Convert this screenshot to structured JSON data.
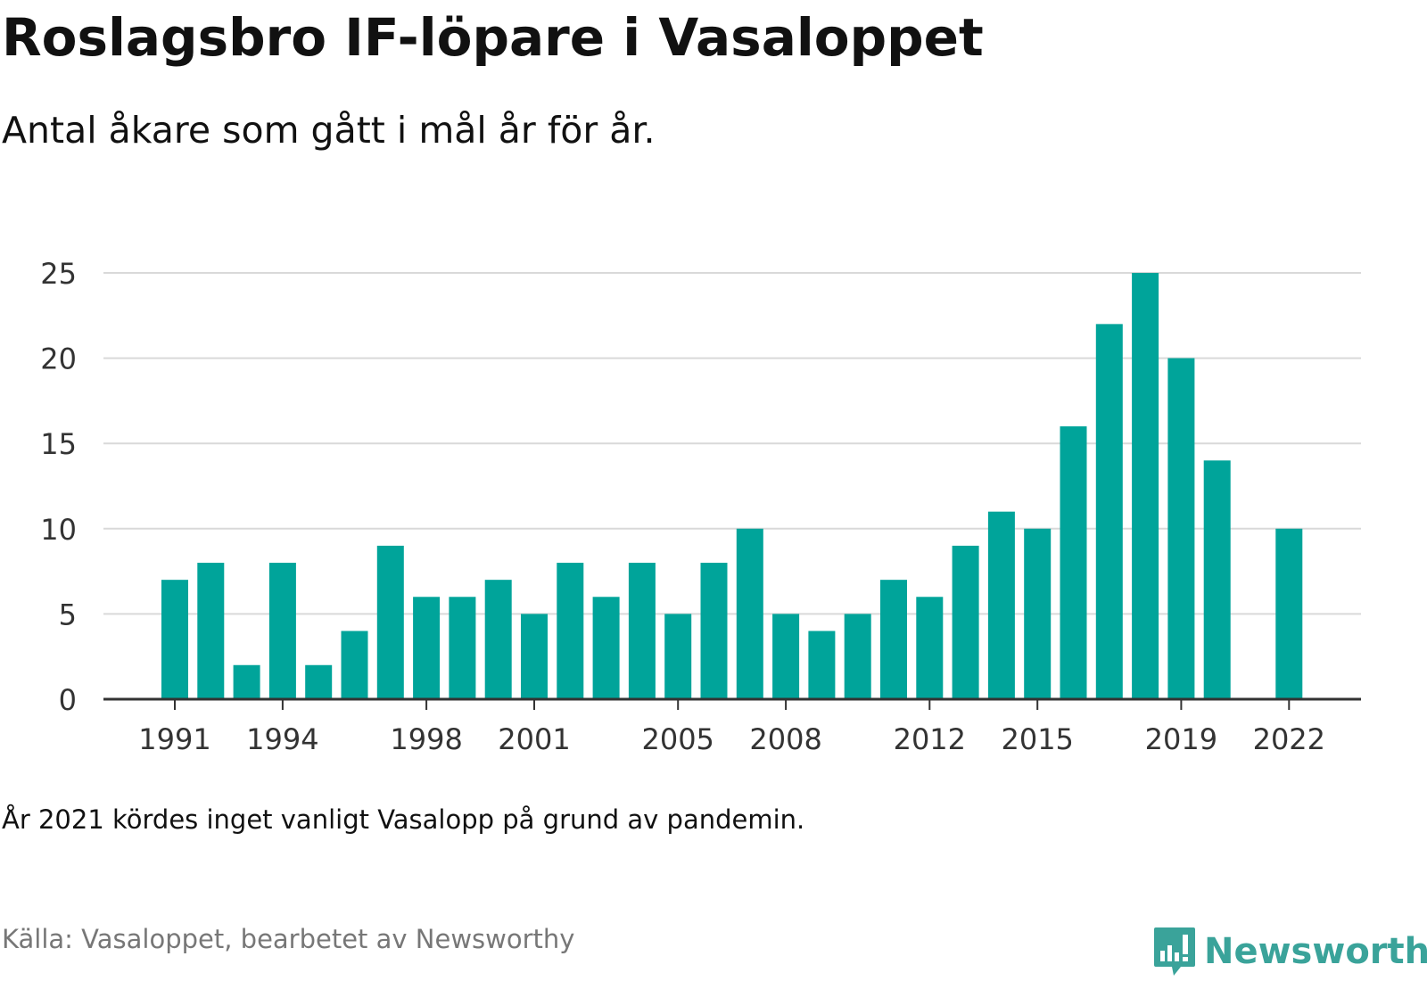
{
  "header": {
    "title": "Roslagsbro IF-löpare i Vasaloppet",
    "subtitle": "Antal åkare som gått i mål år för år."
  },
  "footer": {
    "note": "År 2021 kördes inget vanligt Vasalopp på grund av pandemin.",
    "source": "Källa: Vasaloppet, bearbetet av Newsworthy",
    "brand": "Newsworthy",
    "brand_icon": "newsworthy-logo-icon"
  },
  "colors": {
    "bar": "#00A49A",
    "grid": "#d9d9d9",
    "axis": "#333333",
    "brand": "#3aa39a"
  },
  "chart_data": {
    "type": "bar",
    "x": [
      1991,
      1992,
      1993,
      1994,
      1995,
      1996,
      1997,
      1998,
      1999,
      2000,
      2001,
      2002,
      2003,
      2004,
      2005,
      2006,
      2007,
      2008,
      2009,
      2010,
      2011,
      2012,
      2013,
      2014,
      2015,
      2016,
      2017,
      2018,
      2019,
      2020,
      2021,
      2022
    ],
    "values": [
      7,
      8,
      2,
      8,
      2,
      4,
      9,
      6,
      6,
      7,
      5,
      8,
      6,
      8,
      5,
      8,
      10,
      5,
      4,
      5,
      7,
      6,
      9,
      11,
      10,
      16,
      22,
      25,
      20,
      14,
      null,
      10
    ],
    "x_tick_labels": [
      "1991",
      "1994",
      "1998",
      "2001",
      "2005",
      "2008",
      "2012",
      "2015",
      "2019",
      "2022"
    ],
    "y_ticks": [
      0,
      5,
      10,
      15,
      20,
      25
    ],
    "ylim": [
      0,
      25
    ],
    "xlabel": "",
    "ylabel": "",
    "grid": true,
    "legend": "none"
  }
}
